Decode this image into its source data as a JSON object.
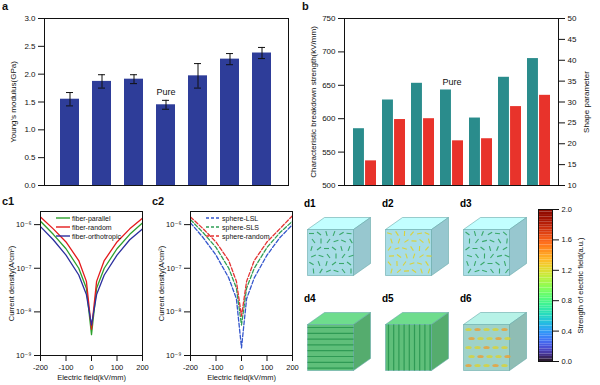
{
  "chart_data": [
    {
      "type": "bar",
      "panel_label": "a",
      "ylabel": "Young's modulus(GPa)",
      "categories": [
        null,
        null,
        null,
        null,
        null,
        null,
        null
      ],
      "values": [
        1.55,
        1.87,
        1.91,
        1.45,
        1.97,
        2.27,
        2.38
      ],
      "errors": [
        0.12,
        0.12,
        0.08,
        0.08,
        0.22,
        0.1,
        0.1
      ],
      "color": "#2e3d99",
      "ylim": [
        0,
        3
      ],
      "yticks": [
        {
          "value": 0,
          "label": "0.0"
        },
        0.5,
        {
          "value": 1,
          "label": "1.0"
        },
        1.5,
        {
          "value": 2,
          "label": "2.0"
        },
        2.5,
        {
          "value": 3,
          "label": "3.0"
        }
      ],
      "annotations": [
        {
          "text": "Pure",
          "index": 3
        }
      ],
      "tick_labels": "y"
    },
    {
      "type": "bar",
      "panel_label": "b",
      "ylabel": "Characteristic breakdown strength(kV/mm)",
      "y2label": "Shape parameter",
      "categories": [
        null,
        null,
        null,
        null,
        null,
        null,
        null
      ],
      "series": [
        {
          "name": "Characteristic breakdown strength(kV/mm)",
          "color": "#2a8c8c",
          "values": [
            585,
            628,
            653,
            643,
            601,
            662,
            690
          ]
        },
        {
          "name": "Shape parameter",
          "color": "#e8332b",
          "axis": "y2",
          "values": [
            15.9,
            25.8,
            26.0,
            20.7,
            21.2,
            28.9,
            31.6
          ]
        }
      ],
      "ylim": [
        500,
        750
      ],
      "yticks": [
        500,
        550,
        600,
        650,
        700,
        750
      ],
      "y2lim": [
        10,
        50
      ],
      "y2ticks": [
        10,
        15,
        20,
        25,
        30,
        35,
        40,
        45,
        50
      ],
      "annotations": [
        {
          "text": "Pure",
          "index": 3
        }
      ],
      "tick_labels": "y"
    },
    {
      "type": "line",
      "panel_label": "c1",
      "xlabel": "Electric field(kV/mm)",
      "ylabel": "Current density(A/cm²)",
      "log": "y",
      "x": [
        -200,
        -150,
        -100,
        -50,
        -20,
        0,
        20,
        50,
        100,
        150,
        200
      ],
      "series": [
        {
          "name": "fiber-parallel",
          "color": "#2ca02c",
          "line_style": "solid",
          "values": [
            1.2e-06,
            6e-07,
            2.8e-07,
            1e-07,
            3.5e-08,
            3e-09,
            3.5e-08,
            1e-07,
            2.8e-07,
            6e-07,
            1.1e-06
          ]
        },
        {
          "name": "fiber-random",
          "color": "#e41a1c",
          "line_style": "solid",
          "values": [
            1.5e-06,
            8e-07,
            4e-07,
            1.5e-07,
            5e-08,
            4e-09,
            5e-08,
            1.5e-07,
            4e-07,
            8e-07,
            1.4e-06
          ]
        },
        {
          "name": "fiber-orthotropic",
          "color": "#2b2f9e",
          "line_style": "solid",
          "values": [
            9e-07,
            4.5e-07,
            2e-07,
            7e-08,
            2.5e-08,
            5e-09,
            2.5e-08,
            7e-08,
            2e-07,
            4.5e-07,
            8e-07
          ]
        }
      ],
      "xlim": [
        -200,
        200
      ],
      "xticks": [
        -200,
        -100,
        0,
        100,
        200
      ],
      "ylim": [
        1e-09,
        2e-06
      ],
      "yticks": [
        {
          "value": 1e-09,
          "label": "10⁻⁹"
        },
        {
          "value": 1e-08,
          "label": "10⁻⁸"
        },
        {
          "value": 1e-07,
          "label": "10⁻⁷"
        },
        {
          "value": 1e-06,
          "label": "10⁻⁶"
        }
      ],
      "legend": "top"
    },
    {
      "type": "line",
      "panel_label": "c2",
      "xlabel": "Electric field(kV/mm)",
      "ylabel": "Current density(A/cm²)",
      "log": "y",
      "x": [
        -200,
        -150,
        -100,
        -50,
        -20,
        0,
        20,
        50,
        100,
        150,
        200
      ],
      "series": [
        {
          "name": "sphere-LSL",
          "color": "#3355cc",
          "line_style": "dashed",
          "values": [
            1.1e-06,
            5e-07,
            2e-07,
            6e-08,
            2e-08,
            1.5e-09,
            2e-08,
            6e-08,
            2e-07,
            5e-07,
            1e-06
          ]
        },
        {
          "name": "sphere-SLS",
          "color": "#2f9e55",
          "line_style": "dashed",
          "values": [
            1.3e-06,
            6.5e-07,
            3e-07,
            1e-07,
            3.5e-08,
            5e-09,
            3.5e-08,
            1e-07,
            3e-07,
            6.5e-07,
            1.2e-06
          ]
        },
        {
          "name": "sphere-random",
          "color": "#e33333",
          "line_style": "dashed",
          "values": [
            1.5e-06,
            8e-07,
            4e-07,
            1.5e-07,
            5e-08,
            8e-09,
            5e-08,
            1.5e-07,
            4e-07,
            8e-07,
            1.6e-06
          ]
        }
      ],
      "xlim": [
        -200,
        200
      ],
      "xticks": [
        -200,
        -100,
        0,
        100,
        200
      ],
      "ylim": [
        1e-09,
        2e-06
      ],
      "yticks": [
        {
          "value": 1e-09,
          "label": "10⁻⁹"
        },
        {
          "value": 1e-08,
          "label": "10⁻⁸"
        },
        {
          "value": 1e-07,
          "label": "10⁻⁷"
        },
        {
          "value": 1e-06,
          "label": "10⁻⁶"
        }
      ],
      "legend": "top"
    },
    {
      "type": "image",
      "panels": [
        "d1",
        "d2",
        "d3",
        "d4",
        "d5",
        "d6"
      ],
      "colorbar": {
        "label": "Strength of electric field(a.u.)",
        "range": [
          0,
          2
        ],
        "ticks": [
          {
            "value": 0,
            "label": "0.0"
          },
          0.4,
          0.8,
          1.2,
          1.6,
          {
            "value": 2,
            "label": "2.0"
          }
        ]
      }
    }
  ]
}
